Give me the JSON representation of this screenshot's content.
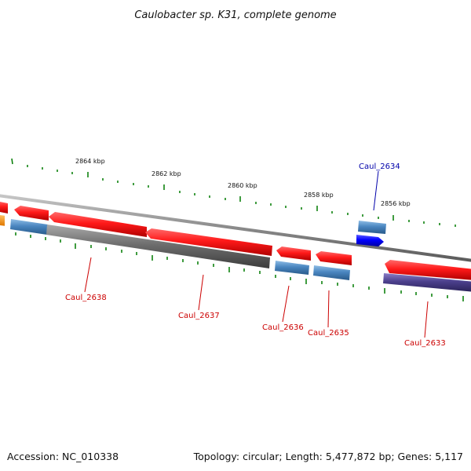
{
  "title": "Caulobacter sp. K31, complete genome",
  "footer": {
    "accession": "Accession: NC_010338",
    "summary": "Topology: circular; Length: 5,477,872 bp; Genes: 5,117"
  },
  "ticks": [
    "2864 kbp",
    "2862 kbp",
    "2860 kbp",
    "2858 kbp",
    "2856 kbp"
  ],
  "genes": [
    {
      "name": "Caul_2638",
      "color": "#cc0000",
      "strand": "forward-reverse"
    },
    {
      "name": "Caul_2637",
      "color": "#cc0000",
      "strand": "reverse"
    },
    {
      "name": "Caul_2636",
      "color": "#cc0000",
      "strand": "reverse"
    },
    {
      "name": "Caul_2635",
      "color": "#cc0000",
      "strand": "reverse"
    },
    {
      "name": "Caul_2634",
      "color": "#0000aa",
      "strand": "forward"
    },
    {
      "name": "Caul_2633",
      "color": "#cc0000",
      "strand": "reverse"
    }
  ],
  "colors": {
    "cds_red": "#ff1a1a",
    "cds_blue": "#0000ff",
    "cog_gray": "#6e6e6e",
    "cog_steel": "#4a86c0",
    "cog_purple": "#4b3f8c",
    "cog_orange": "#ff9900",
    "backbone": "#8a8a8a",
    "tick_green": "#007a00"
  }
}
